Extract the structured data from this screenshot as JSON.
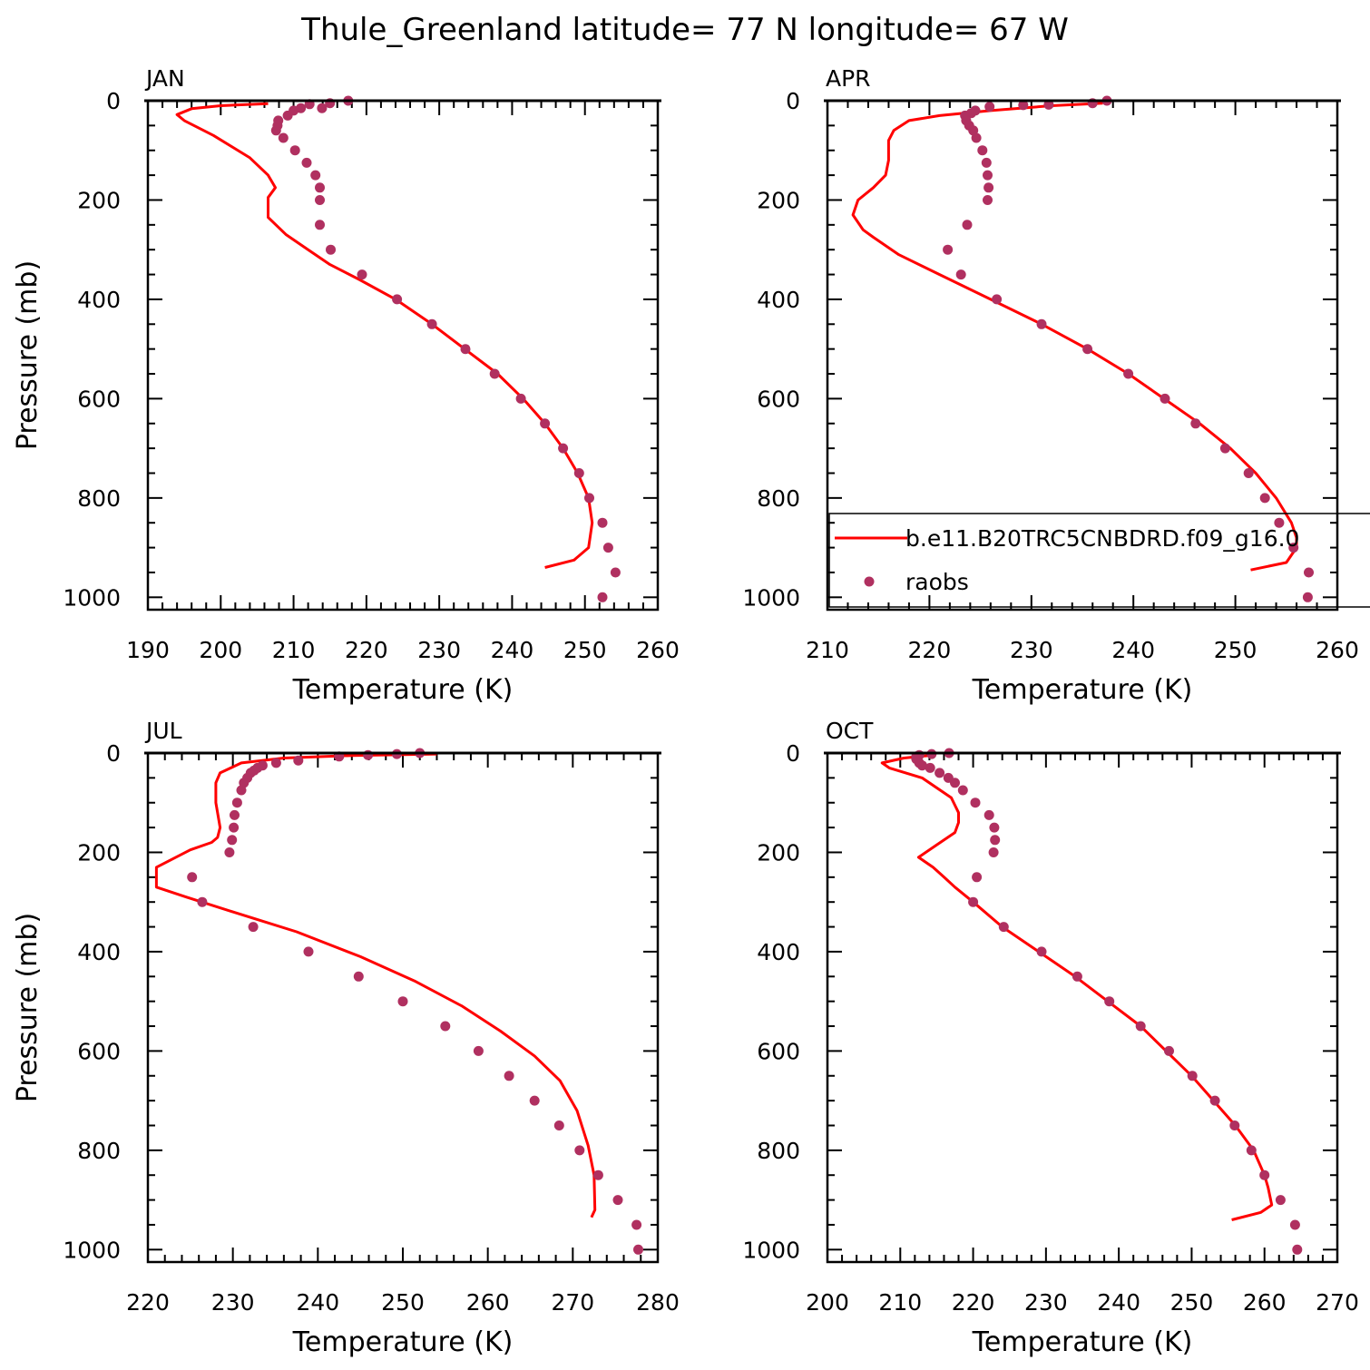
{
  "figure": {
    "title": "Thule_Greenland  latitude= 77 N longitude= 67 W"
  },
  "colors": {
    "model_line": "#ff0000",
    "obs_marker": "#b03060",
    "axes": "#000000",
    "background": "#ffffff"
  },
  "legend": {
    "panel": "APR",
    "entries": [
      {
        "label": "b.e11.B20TRC5CNBDRD.f09_g16.0",
        "style": "line",
        "color": "#ff0000"
      },
      {
        "label": "raobs",
        "style": "marker",
        "color": "#b03060"
      }
    ]
  },
  "chart_data": [
    {
      "type": "scatter",
      "panel_label": "JAN",
      "xlabel": "Temperature (K)",
      "ylabel": "Pressure (mb)",
      "xlim": [
        190,
        260
      ],
      "xticks": [
        190,
        200,
        210,
        220,
        230,
        240,
        250,
        260
      ],
      "ylim": [
        1025,
        0
      ],
      "yticks": [
        0,
        200,
        400,
        600,
        800,
        1000
      ],
      "y_inverted": true,
      "series": [
        {
          "style": "line",
          "color": "#ff0000",
          "x": [
            206.5,
            200,
            196,
            194,
            195,
            199,
            204,
            206.5,
            207.5,
            206.5,
            206.5,
            206.5,
            209,
            212,
            215,
            219,
            224,
            229,
            233.5,
            238,
            241.5,
            244.5,
            247,
            249,
            250.5,
            251,
            250.5,
            248.5,
            244.5
          ],
          "y": [
            6,
            10,
            16,
            28,
            40,
            70,
            115,
            150,
            175,
            195,
            220,
            235,
            270,
            300,
            330,
            360,
            400,
            450,
            500,
            550,
            600,
            650,
            700,
            750,
            800,
            850,
            900,
            925,
            940
          ]
        },
        {
          "style": "markers",
          "color": "#b03060",
          "x": [
            217.5,
            215,
            212.2,
            211,
            213.9,
            210,
            209.2,
            207.9,
            207.8,
            207.6,
            208.6,
            210.2,
            211.8,
            213,
            213.6,
            213.6,
            213.6,
            215.1,
            219.4,
            224.2,
            229,
            233.6,
            237.6,
            241.2,
            244.5,
            247,
            249.2,
            250.6,
            252.4,
            253.2,
            254.2,
            252.4
          ],
          "y": [
            0,
            5,
            7,
            15,
            15,
            20,
            30,
            40,
            50,
            60,
            75,
            100,
            125,
            150,
            175,
            200,
            250,
            300,
            350,
            400,
            450,
            500,
            550,
            600,
            650,
            700,
            750,
            800,
            850,
            900,
            950,
            1000
          ]
        }
      ]
    },
    {
      "type": "scatter",
      "panel_label": "APR",
      "xlabel": "Temperature (K)",
      "ylabel": "",
      "xlim": [
        210,
        260
      ],
      "xticks": [
        210,
        220,
        230,
        240,
        250,
        260
      ],
      "ylim": [
        1025,
        0
      ],
      "yticks": [
        0,
        200,
        400,
        600,
        800,
        1000
      ],
      "y_inverted": true,
      "series": [
        {
          "style": "line",
          "color": "#ff0000",
          "x": [
            237,
            232,
            226,
            221,
            218,
            216.5,
            216,
            216,
            215.7,
            214.5,
            213,
            212.5,
            213.5,
            214.5,
            217,
            221,
            226,
            231,
            235.5,
            239.5,
            243,
            246.5,
            249.5,
            252,
            254,
            255.5,
            256,
            256,
            255,
            251.5
          ],
          "y": [
            5,
            10,
            20,
            30,
            40,
            60,
            80,
            120,
            150,
            175,
            200,
            230,
            260,
            275,
            310,
            350,
            400,
            450,
            500,
            550,
            600,
            650,
            700,
            750,
            800,
            850,
            880,
            900,
            930,
            945
          ]
        },
        {
          "style": "markers",
          "color": "#b03060",
          "x": [
            237.4,
            236,
            231.7,
            229.2,
            225.9,
            224.5,
            224.1,
            223.5,
            223.6,
            223.9,
            224.3,
            224.6,
            225.2,
            225.6,
            225.7,
            225.8,
            225.7,
            223.7,
            221.8,
            223.1,
            226.6,
            231,
            235.5,
            239.5,
            243.1,
            246.1,
            249,
            251.3,
            252.9,
            254.3,
            255.7,
            257.2,
            257.1
          ],
          "y": [
            0,
            5,
            8,
            9,
            12,
            20,
            25,
            30,
            40,
            50,
            60,
            75,
            100,
            125,
            150,
            175,
            200,
            250,
            300,
            350,
            400,
            450,
            500,
            550,
            600,
            650,
            700,
            750,
            800,
            850,
            900,
            950,
            1000
          ]
        }
      ]
    },
    {
      "type": "scatter",
      "panel_label": "JUL",
      "xlabel": "Temperature (K)",
      "ylabel": "Pressure (mb)",
      "xlim": [
        220,
        280
      ],
      "xticks": [
        220,
        230,
        240,
        250,
        260,
        270,
        280
      ],
      "ylim": [
        1025,
        0
      ],
      "yticks": [
        0,
        200,
        400,
        600,
        800,
        1000
      ],
      "y_inverted": true,
      "series": [
        {
          "style": "line",
          "color": "#ff0000",
          "x": [
            254,
            244,
            236,
            231,
            228.5,
            228,
            228,
            228.5,
            228.2,
            227.5,
            225,
            221,
            221,
            224.5,
            230,
            237.5,
            245,
            251.5,
            257,
            261.5,
            265.5,
            268.5,
            270.5,
            271.8,
            272.5,
            272.6,
            272.2
          ],
          "y": [
            2,
            5,
            10,
            20,
            40,
            60,
            100,
            150,
            170,
            180,
            195,
            230,
            270,
            290,
            320,
            360,
            410,
            460,
            510,
            560,
            610,
            660,
            720,
            790,
            850,
            920,
            935
          ]
        },
        {
          "style": "markers",
          "color": "#b03060",
          "x": [
            252,
            249.3,
            245.9,
            242.5,
            237.7,
            235.1,
            233.5,
            232.9,
            232.5,
            232.1,
            231.7,
            231.3,
            231,
            230.5,
            230.2,
            230.1,
            229.9,
            229.6,
            225.2,
            226.4,
            232.4,
            238.9,
            244.8,
            250,
            255,
            258.9,
            262.5,
            265.5,
            268.4,
            270.8,
            273,
            275.3,
            277.5,
            277.7
          ],
          "y": [
            0,
            2,
            4,
            7,
            15,
            20,
            25,
            30,
            35,
            40,
            50,
            60,
            75,
            100,
            125,
            150,
            175,
            200,
            250,
            300,
            350,
            400,
            450,
            500,
            550,
            600,
            650,
            700,
            750,
            800,
            850,
            900,
            950,
            1000
          ]
        }
      ]
    },
    {
      "type": "scatter",
      "panel_label": "OCT",
      "xlabel": "Temperature (K)",
      "ylabel": "",
      "xlim": [
        200,
        270
      ],
      "xticks": [
        200,
        210,
        220,
        230,
        240,
        250,
        260,
        270
      ],
      "ylim": [
        1025,
        0
      ],
      "yticks": [
        0,
        200,
        400,
        600,
        800,
        1000
      ],
      "y_inverted": true,
      "series": [
        {
          "style": "line",
          "color": "#ff0000",
          "x": [
            214,
            210.5,
            207.5,
            208.5,
            213,
            217,
            218,
            218,
            217.5,
            215,
            212.5,
            214.5,
            216,
            217.5,
            220,
            224,
            229,
            234,
            238.5,
            243,
            246.5,
            250,
            253,
            256,
            258.5,
            260,
            260.5,
            261,
            259.5,
            255.5
          ],
          "y": [
            5,
            10,
            20,
            30,
            50,
            90,
            120,
            140,
            160,
            185,
            210,
            230,
            250,
            270,
            300,
            350,
            400,
            450,
            500,
            550,
            600,
            650,
            700,
            750,
            800,
            850,
            875,
            910,
            925,
            940
          ]
        },
        {
          "style": "markers",
          "color": "#b03060",
          "x": [
            216.7,
            214.3,
            212.6,
            212.2,
            212.2,
            212.6,
            213,
            214.1,
            215.4,
            216.6,
            217.5,
            218.6,
            220.3,
            222.2,
            222.9,
            223,
            222.8,
            220.5,
            220,
            224.2,
            229.4,
            234.3,
            238.7,
            243,
            246.9,
            250.1,
            253.2,
            255.9,
            258.2,
            260,
            262.2,
            264.2,
            264.5
          ],
          "y": [
            0,
            2,
            4,
            7,
            12,
            20,
            25,
            30,
            40,
            50,
            60,
            75,
            100,
            125,
            150,
            175,
            200,
            250,
            300,
            350,
            400,
            450,
            500,
            550,
            600,
            650,
            700,
            750,
            800,
            850,
            900,
            950,
            1000
          ]
        }
      ]
    }
  ]
}
